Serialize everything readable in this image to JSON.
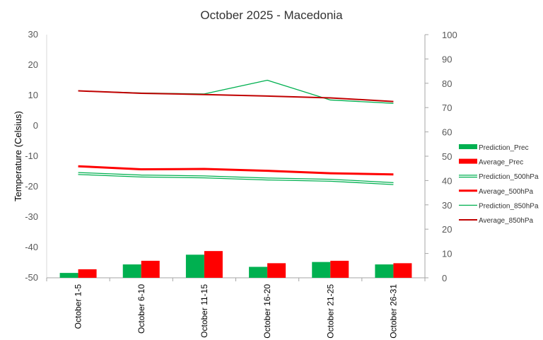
{
  "chart_data": {
    "type": "bar",
    "title": "October 2025 - Macedonia",
    "ylabel": "Temperature (Celsius)",
    "xlabel": "",
    "categories": [
      "October 1-5",
      "October 6-10",
      "October 11-15",
      "October 16-20",
      "October 21-25",
      "October 26-31"
    ],
    "ylim": [
      -50,
      30
    ],
    "y_ticks": [
      30,
      20,
      10,
      0,
      -10,
      -20,
      -30,
      -40,
      -50
    ],
    "y2lim": [
      0,
      100
    ],
    "y2_ticks": [
      100,
      90,
      80,
      70,
      60,
      50,
      40,
      30,
      20,
      10,
      0
    ],
    "grid": false,
    "legend_position": "right",
    "series": [
      {
        "name": "Prediction_Prec",
        "kind": "bar",
        "axis": "right",
        "color": "#00b050",
        "values": [
          2.0,
          5.5,
          9.5,
          4.5,
          6.5,
          5.5
        ]
      },
      {
        "name": "Average_Prec",
        "kind": "bar",
        "axis": "right",
        "color": "#ff0000",
        "values": [
          3.5,
          7.0,
          11.0,
          6.0,
          7.0,
          6.0
        ]
      },
      {
        "name": "Prediction_500hPa",
        "kind": "line",
        "style": "double",
        "axis": "left",
        "color": "#00b050",
        "values": [
          -15.7,
          -16.5,
          -16.8,
          -17.5,
          -17.9,
          -19.0
        ]
      },
      {
        "name": "Average_500hPa",
        "kind": "line",
        "style": "thick",
        "axis": "left",
        "color": "#ff0000",
        "values": [
          -13.3,
          -14.3,
          -14.2,
          -14.8,
          -15.6,
          -16.0
        ]
      },
      {
        "name": "Prediction_850hPa",
        "kind": "line",
        "style": "thin",
        "axis": "left",
        "color": "#00b050",
        "values": [
          11.5,
          10.8,
          10.5,
          15.0,
          8.5,
          7.4
        ]
      },
      {
        "name": "Average_850hPa",
        "kind": "line",
        "style": "medium",
        "axis": "left",
        "color": "#c00000",
        "values": [
          11.5,
          10.7,
          10.3,
          9.8,
          9.2,
          8.0
        ]
      }
    ]
  }
}
